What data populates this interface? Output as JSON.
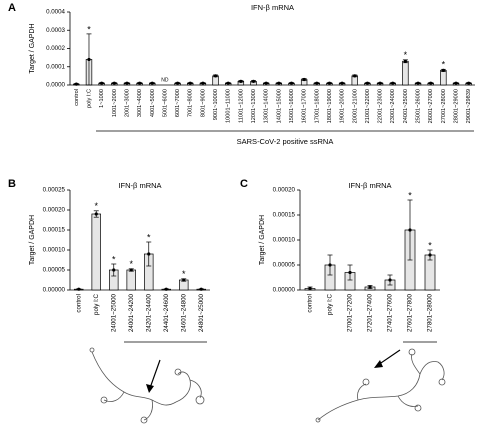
{
  "chart_data": [
    {
      "type": "bar",
      "panel": "A",
      "title": "IFN-β mRNA",
      "ylabel": "Target / GAPDH",
      "xlabel": "SARS-CoV-2 positive ssRNA",
      "categories": [
        "control",
        "poly I:C",
        "1~1000",
        "1001~2000",
        "2001~3000",
        "3001~4000",
        "4001~5000",
        "5001~6000",
        "6001~7000",
        "7001~8000",
        "8001~9000",
        "9001~10000",
        "10001~11000",
        "11001~12000",
        "12001~13000",
        "13001~14000",
        "14001~15000",
        "15001~16000",
        "16001~17000",
        "17001~18000",
        "18001~19000",
        "19001~20000",
        "20001~21000",
        "21001~22000",
        "22001~23000",
        "23001~24000",
        "24001~25000",
        "25001~26000",
        "26001~27000",
        "27001~28000",
        "28001~29000",
        "29001~29839"
      ],
      "values": [
        5e-06,
        0.00014,
        1e-05,
        1e-05,
        1e-05,
        1e-05,
        1e-05,
        null,
        1e-05,
        1e-05,
        1e-05,
        5e-05,
        1e-05,
        2e-05,
        2e-05,
        1e-05,
        1e-05,
        1e-05,
        3e-05,
        1e-05,
        1e-05,
        1e-05,
        5e-05,
        1e-05,
        1e-05,
        1e-05,
        0.00013,
        1e-05,
        1e-05,
        8e-05,
        1e-05,
        1e-05
      ],
      "errors": [
        3e-06,
        0.00014,
        3e-06,
        3e-06,
        3e-06,
        3e-06,
        3e-06,
        null,
        3e-06,
        3e-06,
        3e-06,
        5e-06,
        3e-06,
        4e-06,
        4e-06,
        3e-06,
        3e-06,
        3e-06,
        5e-06,
        3e-06,
        3e-06,
        3e-06,
        5e-06,
        3e-06,
        3e-06,
        3e-06,
        8e-06,
        3e-06,
        3e-06,
        6e-06,
        3e-06,
        3e-06
      ],
      "annotations": [
        {
          "at": 1,
          "text": "*"
        },
        {
          "at": 7,
          "text": "ND"
        },
        {
          "at": 26,
          "text": "*"
        },
        {
          "at": 29,
          "text": "*"
        }
      ],
      "ylim": [
        0,
        0.0004
      ],
      "yticks": [
        {
          "value": 0,
          "label": "0.0000"
        },
        {
          "value": 0.0001,
          "label": "0.0001"
        },
        {
          "value": 0.0002,
          "label": "0.0002"
        },
        {
          "value": 0.0003,
          "label": "0.0003"
        },
        {
          "value": 0.0004,
          "label": "0.0004"
        }
      ]
    },
    {
      "type": "bar",
      "panel": "B",
      "title": "IFN-β mRNA",
      "ylabel": "Target / GAPDH",
      "categories": [
        "control",
        "poly I:C",
        "24001~25000",
        "24001~24200",
        "24201~24400",
        "24401~24600",
        "24601~24800",
        "24801~25000"
      ],
      "values": [
        2e-06,
        0.00019,
        5e-05,
        5e-05,
        9e-05,
        2e-06,
        2.5e-05,
        2e-06
      ],
      "errors": [
        1e-06,
        8e-06,
        1.5e-05,
        3e-06,
        3e-05,
        1e-06,
        3e-06,
        1e-06
      ],
      "annotations": [
        {
          "at": 1,
          "text": "*"
        },
        {
          "at": 2,
          "text": "*"
        },
        {
          "at": 3,
          "text": "*"
        },
        {
          "at": 4,
          "text": "*"
        },
        {
          "at": 6,
          "text": "*"
        }
      ],
      "ylim": [
        0,
        0.00025
      ],
      "yticks": [
        {
          "value": 0,
          "label": "0.00000"
        },
        {
          "value": 5e-05,
          "label": "0.00005"
        },
        {
          "value": 0.0001,
          "label": "0.00010"
        },
        {
          "value": 0.00015,
          "label": "0.00015"
        },
        {
          "value": 0.0002,
          "label": "0.00020"
        },
        {
          "value": 0.00025,
          "label": "0.00025"
        }
      ]
    },
    {
      "type": "bar",
      "panel": "C",
      "title": "IFN-β mRNA",
      "ylabel": "Target / GAPDH",
      "categories": [
        "control",
        "poly I:C",
        "27001~27200",
        "27201~27400",
        "27401~27600",
        "27601~27800",
        "27801~28000"
      ],
      "values": [
        3e-06,
        5e-05,
        3.5e-05,
        6e-06,
        2e-05,
        0.00012,
        7e-05
      ],
      "errors": [
        3e-06,
        2e-05,
        1.5e-05,
        3e-06,
        1e-05,
        6e-05,
        1e-05
      ],
      "annotations": [
        {
          "at": 5,
          "text": "*"
        },
        {
          "at": 6,
          "text": "*"
        }
      ],
      "ylim": [
        0,
        0.0002
      ],
      "yticks": [
        {
          "value": 0,
          "label": "0.00000"
        },
        {
          "value": 5e-05,
          "label": "0.00005"
        },
        {
          "value": 0.0001,
          "label": "0.00010"
        },
        {
          "value": 0.00015,
          "label": "0.00015"
        },
        {
          "value": 0.0002,
          "label": "0.00020"
        }
      ]
    }
  ]
}
